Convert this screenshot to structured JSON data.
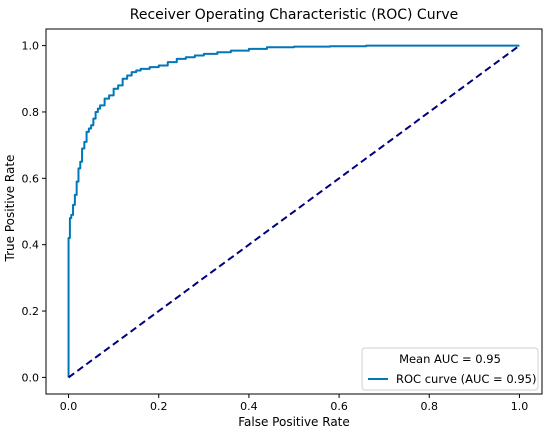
{
  "chart_data": {
    "type": "line",
    "title": "Receiver Operating Characteristic (ROC) Curve",
    "xlabel": "False Positive Rate",
    "ylabel": "True Positive Rate",
    "xlim": [
      -0.05,
      1.05
    ],
    "ylim": [
      -0.05,
      1.05
    ],
    "xticks": [
      0.0,
      0.2,
      0.4,
      0.6,
      0.8,
      1.0
    ],
    "yticks": [
      0.0,
      0.2,
      0.4,
      0.6,
      0.8,
      1.0
    ],
    "xtick_labels": [
      "0.0",
      "0.2",
      "0.4",
      "0.6",
      "0.8",
      "1.0"
    ],
    "ytick_labels": [
      "0.0",
      "0.2",
      "0.4",
      "0.6",
      "0.8",
      "1.0"
    ],
    "grid": false,
    "legend": {
      "position": "lower-right",
      "title": "Mean AUC = 0.95",
      "entries": [
        "ROC curve (AUC = 0.95)"
      ]
    },
    "series": [
      {
        "name": "ROC curve (AUC = 0.95)",
        "style": "solid",
        "color": "#0077b6",
        "x": [
          0.0,
          0.0,
          0.003,
          0.003,
          0.006,
          0.006,
          0.01,
          0.01,
          0.014,
          0.014,
          0.018,
          0.018,
          0.022,
          0.022,
          0.026,
          0.026,
          0.03,
          0.03,
          0.035,
          0.035,
          0.04,
          0.04,
          0.045,
          0.045,
          0.05,
          0.05,
          0.055,
          0.055,
          0.06,
          0.06,
          0.065,
          0.065,
          0.07,
          0.07,
          0.08,
          0.08,
          0.09,
          0.09,
          0.1,
          0.1,
          0.11,
          0.11,
          0.12,
          0.12,
          0.13,
          0.13,
          0.14,
          0.14,
          0.15,
          0.15,
          0.16,
          0.16,
          0.18,
          0.18,
          0.2,
          0.2,
          0.22,
          0.22,
          0.24,
          0.24,
          0.26,
          0.26,
          0.28,
          0.28,
          0.3,
          0.3,
          0.33,
          0.33,
          0.36,
          0.36,
          0.4,
          0.4,
          0.44,
          0.44,
          0.5,
          0.5,
          0.58,
          0.58,
          0.66,
          0.66,
          0.8,
          0.8,
          1.0
        ],
        "y": [
          0.0,
          0.42,
          0.42,
          0.48,
          0.48,
          0.49,
          0.49,
          0.52,
          0.52,
          0.55,
          0.55,
          0.59,
          0.59,
          0.63,
          0.63,
          0.65,
          0.65,
          0.69,
          0.69,
          0.71,
          0.71,
          0.74,
          0.74,
          0.75,
          0.75,
          0.76,
          0.76,
          0.78,
          0.78,
          0.8,
          0.8,
          0.81,
          0.81,
          0.82,
          0.82,
          0.84,
          0.84,
          0.85,
          0.85,
          0.87,
          0.87,
          0.88,
          0.88,
          0.9,
          0.9,
          0.91,
          0.91,
          0.92,
          0.92,
          0.925,
          0.925,
          0.93,
          0.93,
          0.935,
          0.935,
          0.94,
          0.94,
          0.95,
          0.95,
          0.96,
          0.96,
          0.965,
          0.965,
          0.97,
          0.97,
          0.975,
          0.975,
          0.98,
          0.98,
          0.985,
          0.985,
          0.99,
          0.99,
          0.995,
          0.995,
          0.997,
          0.997,
          0.998,
          0.998,
          1.0,
          1.0,
          1.0,
          1.0
        ]
      },
      {
        "name": "",
        "style": "dashed",
        "color": "#000080",
        "x": [
          0.0,
          1.0
        ],
        "y": [
          0.0,
          1.0
        ]
      }
    ]
  }
}
